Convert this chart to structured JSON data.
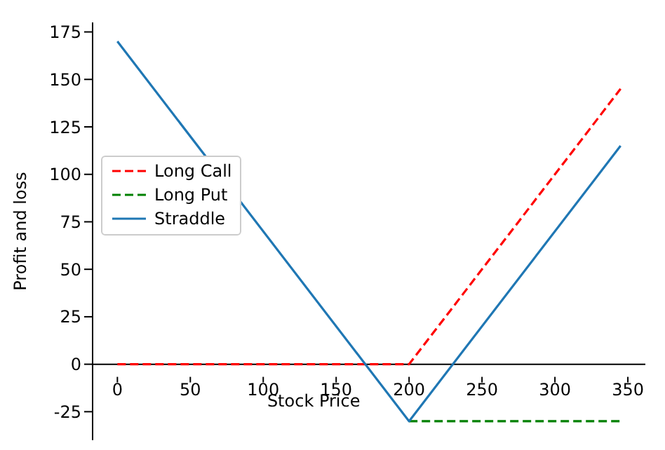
{
  "chart_data": {
    "type": "line",
    "xlabel": "Stock Price",
    "ylabel": "Profit and loss",
    "xlim": [
      -17,
      362
    ],
    "ylim": [
      -40,
      180
    ],
    "xticks": [
      0,
      50,
      100,
      150,
      200,
      250,
      300,
      350
    ],
    "yticks": [
      -25,
      0,
      25,
      50,
      75,
      100,
      125,
      150,
      175
    ],
    "grid": false,
    "legend": "left",
    "marker": "none",
    "series": [
      {
        "name": "Long Call",
        "color": "#ff0000",
        "line_style": "dashed",
        "x": [
          0,
          200,
          345
        ],
        "values": [
          0,
          0,
          145
        ]
      },
      {
        "name": "Long Put",
        "color": "#008000",
        "line_style": "dashed",
        "x": [
          200,
          345
        ],
        "values": [
          -30,
          -30
        ]
      },
      {
        "name": "Straddle",
        "color": "#1f77b4",
        "line_style": "solid",
        "x": [
          0,
          200,
          345
        ],
        "values": [
          170,
          -30,
          115
        ]
      }
    ]
  }
}
